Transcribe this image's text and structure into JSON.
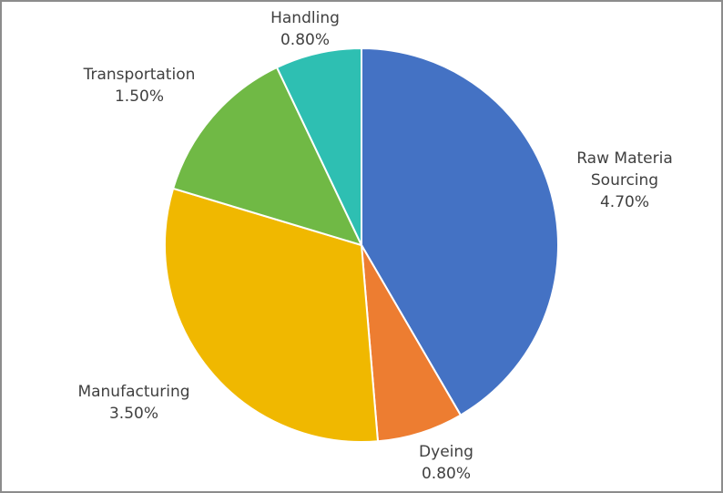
{
  "chart_data": {
    "type": "pie",
    "title": "",
    "categories": [
      "Raw Materia Sourcing",
      "Dyeing",
      "Manufacturing",
      "Transportation",
      "Handling"
    ],
    "values": [
      4.7,
      0.8,
      3.5,
      1.5,
      0.8
    ],
    "unit": "%",
    "colors": [
      "#4472c4",
      "#ed7d31",
      "#f0b800",
      "#70b945",
      "#2ebfb2"
    ],
    "start_angle_deg": 0,
    "direction": "clockwise",
    "legend": "none",
    "data_labels": true
  },
  "labels": [
    {
      "name": "Raw Materia",
      "name2": "Sourcing",
      "value": "4.70%"
    },
    {
      "name": "Dyeing",
      "value": "0.80%"
    },
    {
      "name": "Manufacturing",
      "value": "3.50%"
    },
    {
      "name": "Transportation",
      "value": "1.50%"
    },
    {
      "name": "Handling",
      "value": "0.80%"
    }
  ]
}
